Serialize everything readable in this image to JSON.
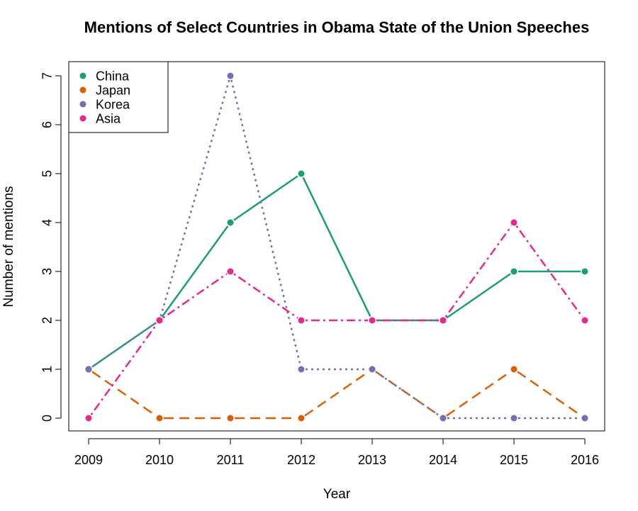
{
  "chart_data": {
    "type": "line",
    "title": "Mentions of Select Countries in Obama State of the Union Speeches",
    "xlabel": "Year",
    "ylabel": "Number of mentions",
    "x": [
      "2009",
      "2010",
      "2011",
      "2012",
      "2013",
      "2014",
      "2015",
      "2016"
    ],
    "y_ticks": [
      "0",
      "1",
      "2",
      "3",
      "4",
      "5",
      "6",
      "7"
    ],
    "ylim": [
      0,
      7
    ],
    "grid": false,
    "legend_position": "top-left",
    "series": [
      {
        "name": "China",
        "values": [
          1,
          2,
          4,
          5,
          2,
          2,
          3,
          3
        ],
        "color": "#1b9e77",
        "line_style": "solid"
      },
      {
        "name": "Japan",
        "values": [
          1,
          0,
          0,
          0,
          1,
          0,
          1,
          0
        ],
        "color": "#d95f02",
        "line_style": "dashed"
      },
      {
        "name": "Korea",
        "values": [
          1,
          2,
          7,
          1,
          1,
          0,
          0,
          0
        ],
        "color": "#7570b3",
        "line_style": "dotted"
      },
      {
        "name": "Asia",
        "values": [
          0,
          2,
          3,
          2,
          2,
          2,
          4,
          2
        ],
        "color": "#e7298a",
        "line_style": "dashdot"
      }
    ]
  }
}
